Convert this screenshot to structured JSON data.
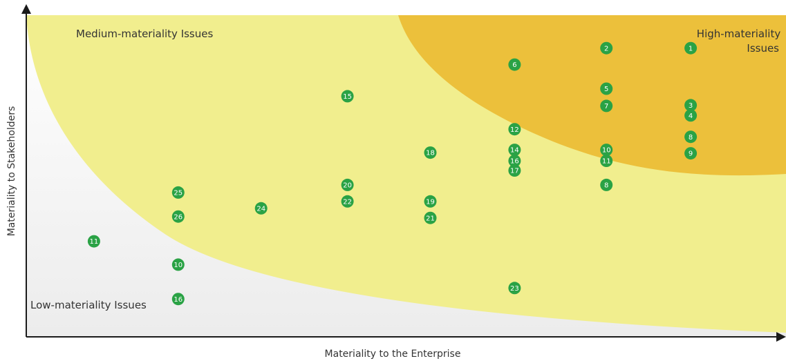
{
  "chart_data": {
    "type": "scatter",
    "xlabel": "Materiality to the Enterprise",
    "ylabel": "Materiality to Stakeholders",
    "xlim": [
      0,
      1100
    ],
    "ylim": [
      0,
      490
    ],
    "grid": false,
    "colors": {
      "point": "#2aa245",
      "zone_medium": "#f1ee8e",
      "zone_high": "#ecc03b",
      "axis": "#1a1a1a"
    },
    "zones": [
      {
        "name": "medium",
        "label_lines": [
          "Medium-materiality Issues"
        ]
      },
      {
        "name": "high",
        "label_lines": [
          "High-materiality",
          "Issues"
        ]
      },
      {
        "name": "low",
        "label_lines": [
          "Low-materiality Issues"
        ]
      }
    ],
    "points": [
      {
        "label": "1",
        "x": 962,
        "y": 420
      },
      {
        "label": "2",
        "x": 840,
        "y": 420
      },
      {
        "label": "6",
        "x": 707,
        "y": 396
      },
      {
        "label": "15",
        "x": 465,
        "y": 350
      },
      {
        "label": "5",
        "x": 840,
        "y": 361
      },
      {
        "label": "7",
        "x": 840,
        "y": 336
      },
      {
        "label": "3",
        "x": 962,
        "y": 337
      },
      {
        "label": "4",
        "x": 962,
        "y": 322
      },
      {
        "label": "12",
        "x": 707,
        "y": 302
      },
      {
        "label": "8",
        "x": 962,
        "y": 291
      },
      {
        "label": "18",
        "x": 585,
        "y": 268
      },
      {
        "label": "14",
        "x": 707,
        "y": 272
      },
      {
        "label": "16",
        "x": 707,
        "y": 256
      },
      {
        "label": "17",
        "x": 707,
        "y": 242
      },
      {
        "label": "10",
        "x": 840,
        "y": 272
      },
      {
        "label": "11",
        "x": 840,
        "y": 256
      },
      {
        "label": "9",
        "x": 962,
        "y": 267
      },
      {
        "label": "8",
        "x": 840,
        "y": 221
      },
      {
        "label": "20",
        "x": 465,
        "y": 221
      },
      {
        "label": "25",
        "x": 220,
        "y": 210
      },
      {
        "label": "22",
        "x": 465,
        "y": 197
      },
      {
        "label": "19",
        "x": 585,
        "y": 197
      },
      {
        "label": "24",
        "x": 340,
        "y": 187
      },
      {
        "label": "26",
        "x": 220,
        "y": 175
      },
      {
        "label": "21",
        "x": 585,
        "y": 173
      },
      {
        "label": "11",
        "x": 98,
        "y": 139
      },
      {
        "label": "10",
        "x": 220,
        "y": 105
      },
      {
        "label": "23",
        "x": 707,
        "y": 71
      },
      {
        "label": "16",
        "x": 220,
        "y": 55
      }
    ]
  }
}
